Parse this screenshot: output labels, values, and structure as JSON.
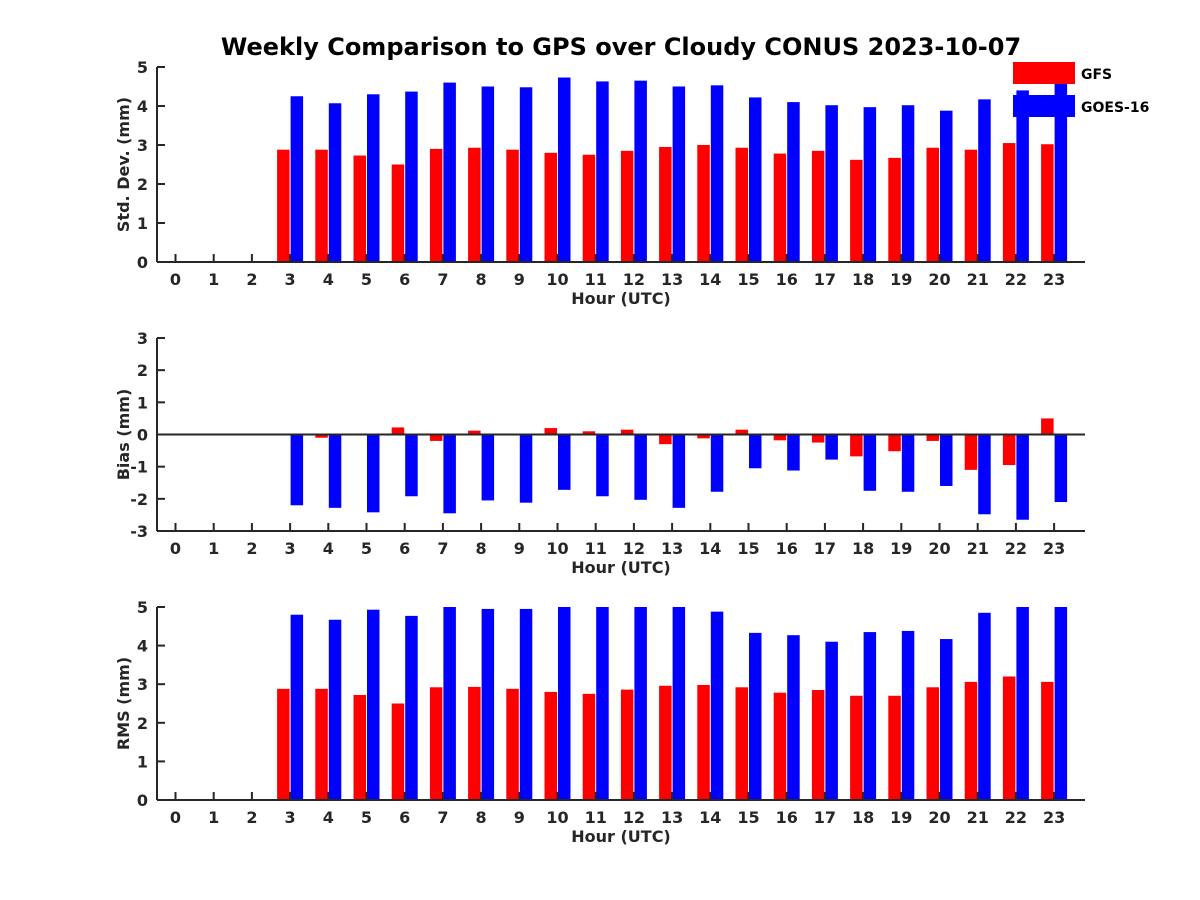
{
  "title": "Weekly Comparison to GPS over Cloudy CONUS 2023-10-07",
  "colors": {
    "gfs": "#ff0000",
    "goes": "#0000ff",
    "axis": "#262626"
  },
  "legend": {
    "placement": "top-right",
    "items": [
      "GFS",
      "GOES-16"
    ]
  },
  "chart_data": [
    {
      "type": "bar",
      "ylabel": "Std. Dev. (mm)",
      "xlabel": "Hour (UTC)",
      "ylim": [
        0,
        5
      ],
      "yticks": [
        "0",
        "1",
        "2",
        "3",
        "4",
        "5"
      ],
      "categories": [
        "0",
        "1",
        "2",
        "3",
        "4",
        "5",
        "6",
        "7",
        "8",
        "9",
        "10",
        "11",
        "12",
        "13",
        "14",
        "15",
        "16",
        "17",
        "18",
        "19",
        "20",
        "21",
        "22",
        "23"
      ],
      "series": [
        {
          "name": "GFS",
          "values": [
            null,
            null,
            null,
            2.88,
            2.88,
            2.73,
            2.5,
            2.9,
            2.93,
            2.88,
            2.8,
            2.75,
            2.85,
            2.95,
            3.0,
            2.93,
            2.78,
            2.85,
            2.62,
            2.67,
            2.93,
            2.88,
            3.05,
            3.02
          ]
        },
        {
          "name": "GOES-16",
          "values": [
            null,
            null,
            null,
            4.25,
            4.07,
            4.3,
            4.37,
            4.6,
            4.5,
            4.48,
            4.73,
            4.63,
            4.65,
            4.5,
            4.53,
            4.22,
            4.1,
            4.02,
            3.97,
            4.02,
            3.88,
            4.17,
            4.4,
            4.78
          ]
        }
      ]
    },
    {
      "type": "bar",
      "ylabel": "Bias (mm)",
      "xlabel": "Hour (UTC)",
      "ylim": [
        -3,
        3
      ],
      "yticks": [
        "-3",
        "-2",
        "-1",
        "0",
        "1",
        "2",
        "3"
      ],
      "categories": [
        "0",
        "1",
        "2",
        "3",
        "4",
        "5",
        "6",
        "7",
        "8",
        "9",
        "10",
        "11",
        "12",
        "13",
        "14",
        "15",
        "16",
        "17",
        "18",
        "19",
        "20",
        "21",
        "22",
        "23"
      ],
      "series": [
        {
          "name": "GFS",
          "values": [
            null,
            null,
            null,
            -0.02,
            -0.1,
            -0.03,
            0.22,
            -0.2,
            0.12,
            -0.03,
            0.2,
            0.1,
            0.15,
            -0.3,
            -0.12,
            0.15,
            -0.18,
            -0.25,
            -0.68,
            -0.52,
            -0.2,
            -1.1,
            -0.95,
            0.5
          ]
        },
        {
          "name": "GOES-16",
          "values": [
            null,
            null,
            null,
            -2.2,
            -2.28,
            -2.42,
            -1.92,
            -2.45,
            -2.05,
            -2.12,
            -1.72,
            -1.92,
            -2.03,
            -2.28,
            -1.78,
            -1.05,
            -1.12,
            -0.78,
            -1.75,
            -1.78,
            -1.6,
            -2.48,
            -2.65,
            -2.1
          ]
        }
      ]
    },
    {
      "type": "bar",
      "ylabel": "RMS (mm)",
      "xlabel": "Hour (UTC)",
      "ylim": [
        0,
        5
      ],
      "yticks": [
        "0",
        "1",
        "2",
        "3",
        "4",
        "5"
      ],
      "categories": [
        "0",
        "1",
        "2",
        "3",
        "4",
        "5",
        "6",
        "7",
        "8",
        "9",
        "10",
        "11",
        "12",
        "13",
        "14",
        "15",
        "16",
        "17",
        "18",
        "19",
        "20",
        "21",
        "22",
        "23"
      ],
      "series": [
        {
          "name": "GFS",
          "values": [
            null,
            null,
            null,
            2.88,
            2.88,
            2.72,
            2.5,
            2.92,
            2.93,
            2.88,
            2.8,
            2.75,
            2.86,
            2.96,
            2.98,
            2.92,
            2.78,
            2.85,
            2.7,
            2.7,
            2.92,
            3.06,
            3.2,
            3.06
          ]
        },
        {
          "name": "GOES-16",
          "values": [
            null,
            null,
            null,
            4.8,
            4.67,
            4.93,
            4.77,
            5.0,
            4.95,
            4.95,
            5.0,
            5.0,
            5.0,
            5.0,
            4.88,
            4.33,
            4.27,
            4.1,
            4.35,
            4.38,
            4.17,
            4.85,
            5.0,
            5.0
          ]
        }
      ]
    }
  ]
}
